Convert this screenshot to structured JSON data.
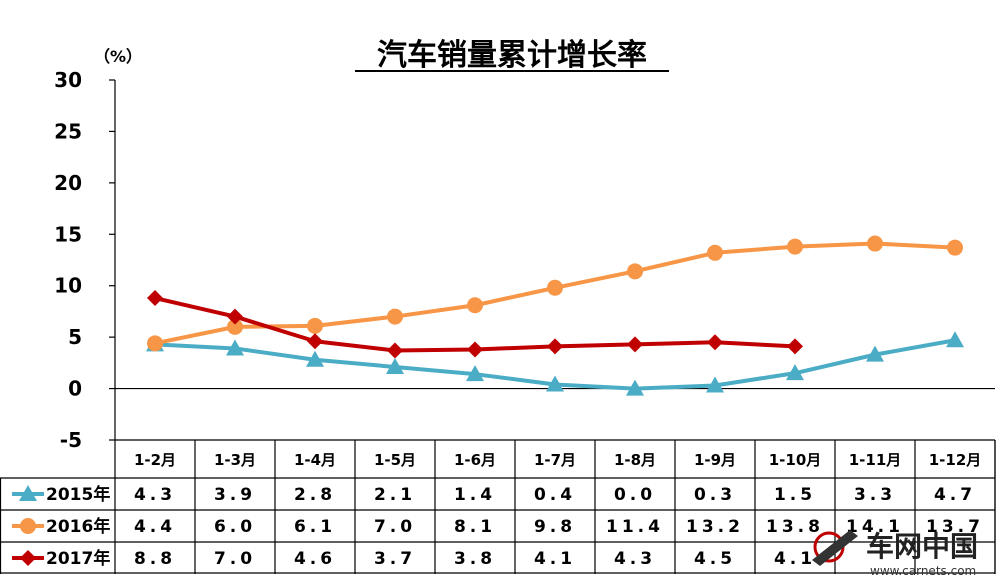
{
  "chart_data": {
    "type": "line",
    "title": "汽车销量累计增长率",
    "unit_label": "（%）",
    "ylim": [
      -5,
      30
    ],
    "yticks": [
      "30",
      "25",
      "20",
      "15",
      "10",
      "5",
      "0",
      "-5"
    ],
    "categories": [
      "1-2月",
      "1-3月",
      "1-4月",
      "1-5月",
      "1-6月",
      "1-7月",
      "1-8月",
      "1-9月",
      "1-10月",
      "1-11月",
      "1-12月"
    ],
    "grid": false,
    "series": [
      {
        "name": "2015年",
        "color": "#4bacc6",
        "marker": "triangle",
        "values": [
          4.3,
          3.9,
          2.8,
          2.1,
          1.4,
          0.4,
          0.0,
          0.3,
          1.5,
          3.3,
          4.7
        ],
        "labels": [
          "4.3",
          "3.9",
          "2.8",
          "2.1",
          "1.4",
          "0.4",
          "0.0",
          "0.3",
          "1.5",
          "3.3",
          "4.7"
        ]
      },
      {
        "name": "2016年",
        "color": "#f79646",
        "marker": "circle",
        "values": [
          4.4,
          6.0,
          6.1,
          7.0,
          8.1,
          9.8,
          11.4,
          13.2,
          13.8,
          14.1,
          13.7
        ],
        "labels": [
          "4.4",
          "6.0",
          "6.1",
          "7.0",
          "8.1",
          "9.8",
          "11.4",
          "13.2",
          "13.8",
          "14.1",
          "13.7"
        ]
      },
      {
        "name": "2017年",
        "color": "#c00000",
        "marker": "diamond",
        "values": [
          8.8,
          7.0,
          4.6,
          3.7,
          3.8,
          4.1,
          4.3,
          4.5,
          4.1,
          null,
          null
        ],
        "labels": [
          "8.8",
          "7.0",
          "4.6",
          "3.7",
          "3.8",
          "4.1",
          "4.3",
          "4.5",
          "4.1",
          "",
          ""
        ]
      }
    ]
  },
  "watermark": {
    "logo_text": "车网中国",
    "url_text": "www.carnets.com"
  }
}
